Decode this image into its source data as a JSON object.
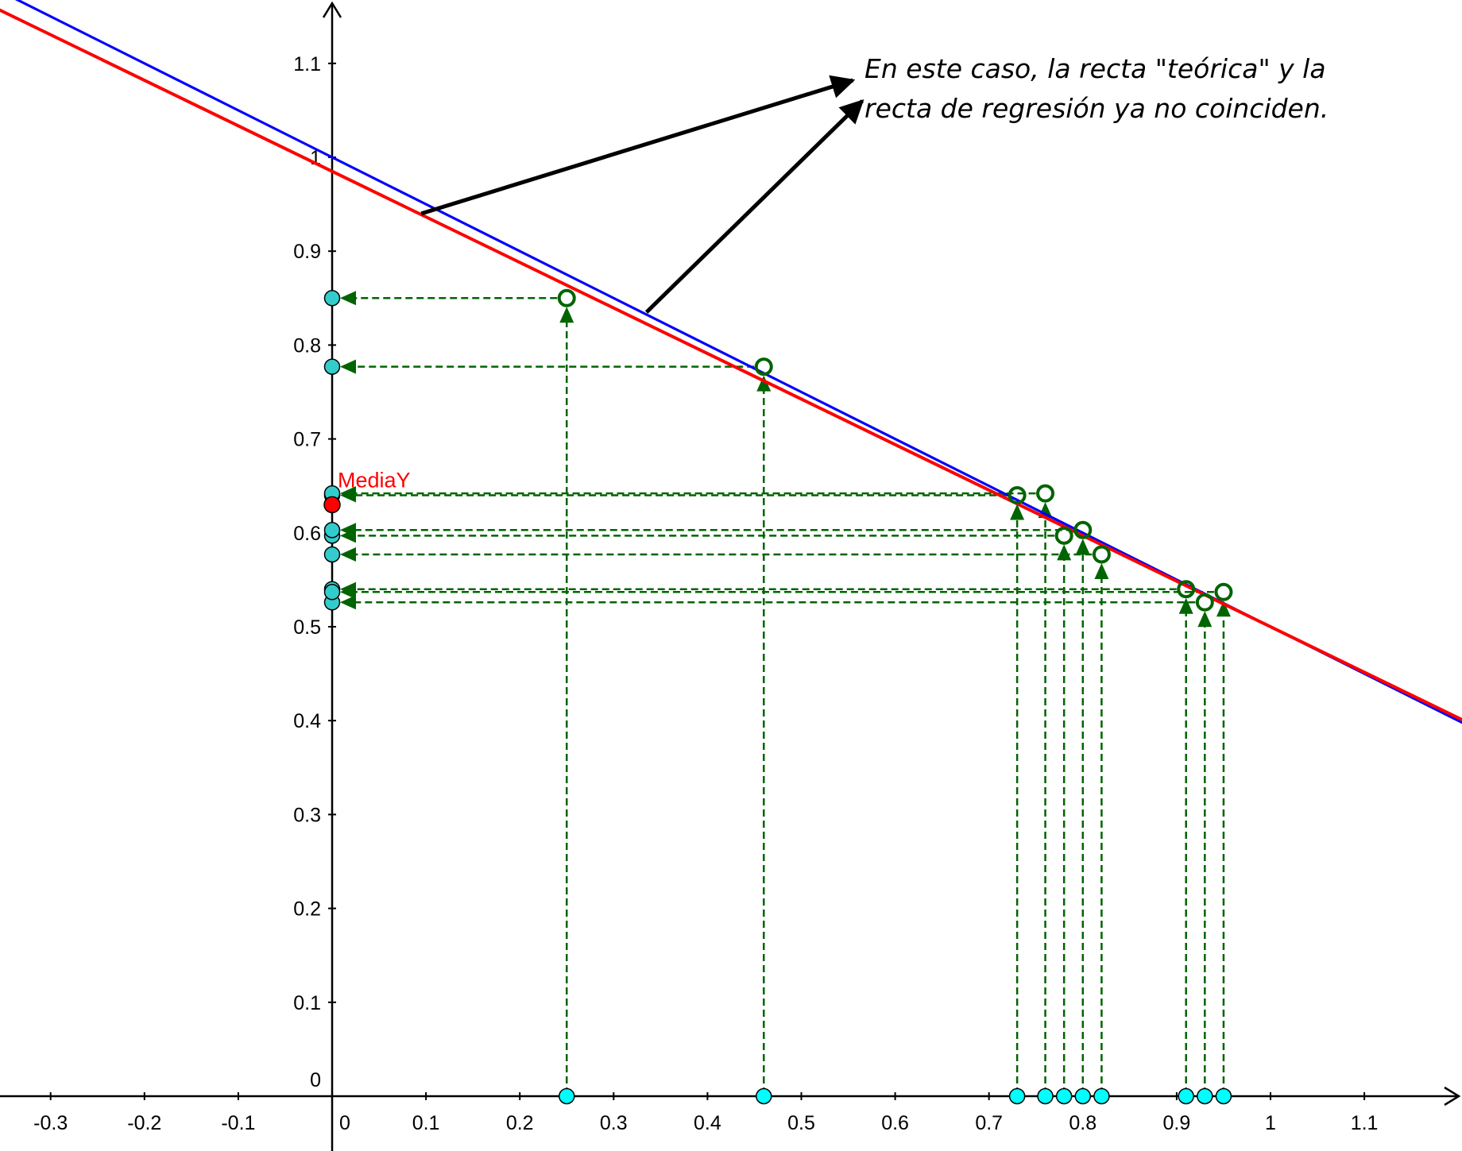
{
  "annotation": {
    "line1": "En este caso, la recta \"teórica\" y la",
    "line2": "recta de regresión ya no coinciden."
  },
  "chart_data": {
    "type": "scatter",
    "title": "",
    "xlabel": "",
    "ylabel": "",
    "xlim": [
      -0.35,
      1.2
    ],
    "ylim": [
      -0.06,
      1.16
    ],
    "grid": false,
    "x_ticks": [
      "-0.3",
      "-0.2",
      "-0.1",
      "0",
      "0.1",
      "0.2",
      "0.3",
      "0.4",
      "0.5",
      "0.6",
      "0.7",
      "0.8",
      "0.9",
      "1",
      "1.1"
    ],
    "y_ticks": [
      "0",
      "0.1",
      "0.2",
      "0.3",
      "0.4",
      "0.5",
      "0.6",
      "0.7",
      "0.8",
      "0.9",
      "1",
      "1.1"
    ],
    "points": [
      {
        "x": 0.25,
        "y": 0.85
      },
      {
        "x": 0.46,
        "y": 0.777
      },
      {
        "x": 0.73,
        "y": 0.64
      },
      {
        "x": 0.76,
        "y": 0.642
      },
      {
        "x": 0.78,
        "y": 0.597
      },
      {
        "x": 0.8,
        "y": 0.603
      },
      {
        "x": 0.82,
        "y": 0.577
      },
      {
        "x": 0.91,
        "y": 0.54
      },
      {
        "x": 0.93,
        "y": 0.526
      },
      {
        "x": 0.95,
        "y": 0.537
      }
    ],
    "lines": [
      {
        "role": "theoretical",
        "color": "#0000ff",
        "intercept": 1.0,
        "slope": -0.5
      },
      {
        "role": "regression",
        "color": "#ff0000",
        "intercept": 0.985,
        "slope": -0.485
      }
    ],
    "mean_y": {
      "label": "MediaY",
      "value": 0.63,
      "color": "#ff0000"
    },
    "colors": {
      "projection": "#006400",
      "point_fill": "#00ffff",
      "axis_point_fill": "#33cccc",
      "axes": "#000000",
      "arrows": "#000000"
    }
  }
}
